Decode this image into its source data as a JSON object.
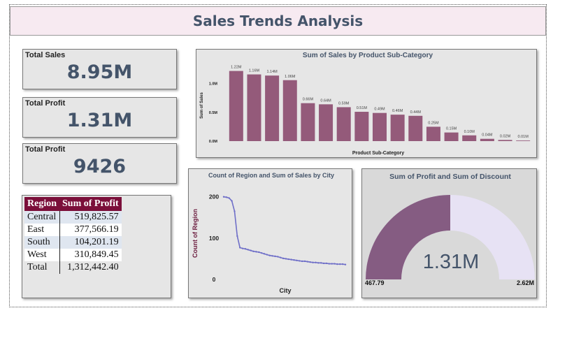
{
  "page": {
    "title": "Sales Trends Analysis"
  },
  "kpis": [
    {
      "label": "Total Sales",
      "value": "8.95M"
    },
    {
      "label": "Total Profit",
      "value": "1.31M"
    },
    {
      "label": "Total Profit",
      "value": "9426"
    }
  ],
  "profit_table": {
    "headers": [
      "Region",
      "Sum of Profit"
    ],
    "rows": [
      {
        "region": "Central",
        "profit": "519,825.57"
      },
      {
        "region": "East",
        "profit": "377,566.19"
      },
      {
        "region": "South",
        "profit": "104,201.19"
      },
      {
        "region": "West",
        "profit": "310,849.45"
      }
    ],
    "total": {
      "label": "Total",
      "profit": "1,312,442.40"
    }
  },
  "colors": {
    "bar": "#945a7a",
    "line": "#6f6fc8",
    "gauge_fill": "#855c82",
    "gauge_bg": "#e7e2f4",
    "title_text": "#44546a"
  },
  "chart_data": [
    {
      "type": "bar",
      "title": "Sum of Sales by Product Sub-Category",
      "xlabel": "Product Sub-Category",
      "ylabel": "Sum of Sales",
      "yticks": [
        "0.0M",
        "0.5M",
        "1.0M"
      ],
      "ylim": [
        0,
        1.3
      ],
      "values": [
        1.22,
        1.16,
        1.14,
        1.06,
        0.66,
        0.64,
        0.59,
        0.51,
        0.49,
        0.46,
        0.44,
        0.25,
        0.15,
        0.1,
        0.04,
        0.02,
        0.01
      ],
      "labels": [
        "1.22M",
        "1.16M",
        "1.14M",
        "1.06M",
        "0.66M",
        "0.64M",
        "0.59M",
        "0.51M",
        "0.49M",
        "0.46M",
        "0.44M",
        "0.25M",
        "0.15M",
        "0.10M",
        "0.04M",
        "0.02M",
        "0.01M"
      ]
    },
    {
      "type": "line",
      "title": "Count of Region and Sum of Sales by City",
      "xlabel": "City",
      "ylabel": "Count of Region",
      "yticks": [
        "0",
        "100",
        "200"
      ],
      "ylim": [
        0,
        230
      ],
      "values": [
        200,
        199,
        197,
        190,
        165,
        105,
        77,
        75,
        74,
        72,
        70,
        68,
        67,
        66,
        64,
        62,
        60,
        58,
        57,
        56,
        55,
        53,
        51,
        50,
        49,
        48,
        47,
        46,
        45,
        44,
        44,
        43,
        42,
        41,
        41,
        40,
        40,
        39,
        39,
        38,
        38,
        38,
        37,
        37,
        37,
        36
      ]
    },
    {
      "type": "gauge",
      "title": "Sum of Profit and Sum of Discount",
      "value_label": "1.31M",
      "min_label": "467.79",
      "max_label": "2.62M",
      "value_fraction": 0.5
    }
  ]
}
